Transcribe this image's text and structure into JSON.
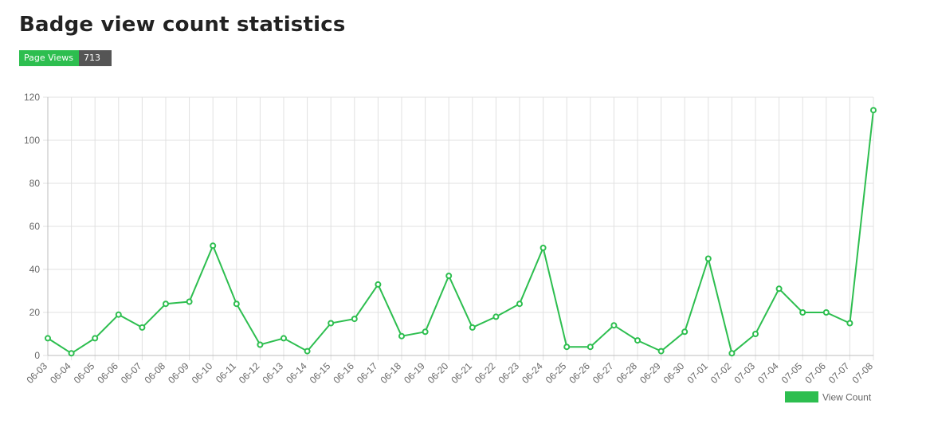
{
  "page": {
    "title": "Badge view count statistics"
  },
  "badge": {
    "label": "Page Views",
    "value": "713"
  },
  "colors": {
    "accent": "#2dbe4f",
    "badge_value_bg": "#555555",
    "grid": "#e0e0e0"
  },
  "chart_data": {
    "type": "line",
    "categories": [
      "06-03",
      "06-04",
      "06-05",
      "06-06",
      "06-07",
      "06-08",
      "06-09",
      "06-10",
      "06-11",
      "06-12",
      "06-13",
      "06-14",
      "06-15",
      "06-16",
      "06-17",
      "06-18",
      "06-19",
      "06-20",
      "06-21",
      "06-22",
      "06-23",
      "06-24",
      "06-25",
      "06-26",
      "06-27",
      "06-28",
      "06-29",
      "06-30",
      "07-01",
      "07-02",
      "07-03",
      "07-04",
      "07-05",
      "07-06",
      "07-07",
      "07-08"
    ],
    "series": [
      {
        "name": "View Count",
        "color": "#2dbe4f",
        "values": [
          8,
          1,
          8,
          19,
          13,
          24,
          25,
          51,
          24,
          5,
          8,
          2,
          15,
          17,
          33,
          9,
          11,
          37,
          13,
          18,
          24,
          50,
          4,
          4,
          14,
          7,
          2,
          11,
          45,
          1,
          10,
          31,
          20,
          20,
          15,
          114
        ]
      }
    ],
    "ylim": [
      0,
      120
    ],
    "yticks": [
      0,
      20,
      40,
      60,
      80,
      100,
      120
    ],
    "grid": true,
    "legend": "bottom-right",
    "xlabel": "",
    "ylabel": ""
  }
}
